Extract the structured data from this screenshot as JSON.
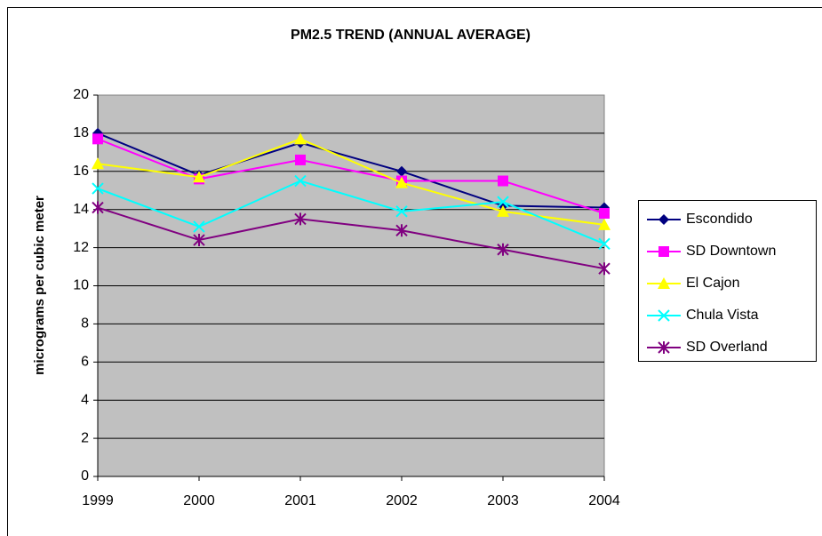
{
  "chart_data": {
    "type": "line",
    "title": "PM2.5 TREND (ANNUAL AVERAGE)",
    "y_label": "micrograms per cubic meter",
    "x": [
      1999,
      2000,
      2001,
      2002,
      2003,
      2004
    ],
    "xlim": [
      1999,
      2004
    ],
    "xticks": [
      1999,
      2000,
      2001,
      2002,
      2003,
      2004
    ],
    "ylim": [
      0,
      20
    ],
    "yticks": [
      0,
      2,
      4,
      6,
      8,
      10,
      12,
      14,
      16,
      18,
      20
    ],
    "grid": true,
    "legend": "right",
    "series": [
      {
        "name": "Escondido",
        "color": "#000080",
        "marker": "diamond",
        "values": [
          18.0,
          15.8,
          17.5,
          16.0,
          14.2,
          14.1
        ]
      },
      {
        "name": "SD Downtown",
        "color": "#ff00ff",
        "marker": "square",
        "values": [
          17.7,
          15.6,
          16.6,
          15.5,
          15.5,
          13.8
        ]
      },
      {
        "name": "El Cajon",
        "color": "#ffff00",
        "marker": "triangle",
        "values": [
          16.4,
          15.7,
          17.7,
          15.4,
          13.9,
          13.2
        ]
      },
      {
        "name": "Chula Vista",
        "color": "#00ffff",
        "marker": "x",
        "values": [
          15.1,
          13.1,
          15.5,
          13.9,
          14.4,
          12.2
        ]
      },
      {
        "name": "SD Overland",
        "color": "#800080",
        "marker": "star",
        "values": [
          14.1,
          12.4,
          13.5,
          12.9,
          11.9,
          10.9
        ]
      }
    ]
  }
}
